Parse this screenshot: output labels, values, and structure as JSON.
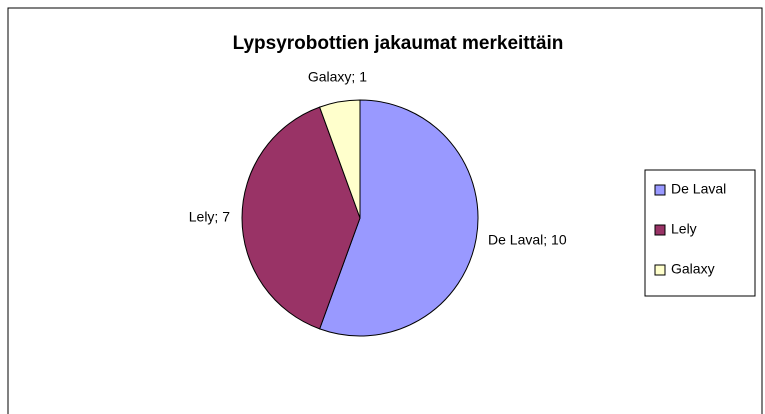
{
  "chart_data": {
    "type": "pie",
    "title": "Lypsyrobottien jakaumat merkeittäin",
    "categories": [
      "De Laval",
      "Lely",
      "Galaxy"
    ],
    "values": [
      10,
      7,
      1
    ],
    "value_labels": [
      "De Laval; 10",
      "Lely; 7",
      "Galaxy; 1"
    ],
    "colors": [
      "#9999ff",
      "#993366",
      "#ffffcc"
    ],
    "legend": "right"
  }
}
